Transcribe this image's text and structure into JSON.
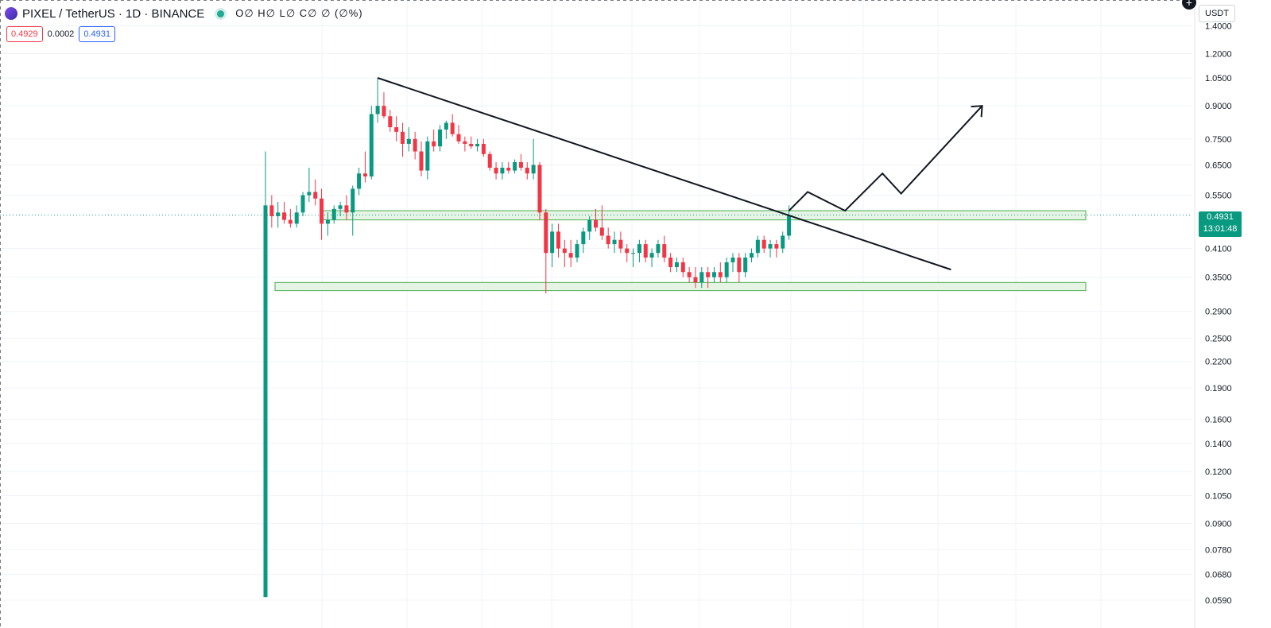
{
  "header": {
    "symbol_title": "PIXEL / TetherUS · 1D · BINANCE",
    "ohlc_text": "O∅ H∅ L∅ C∅ ∅ (∅%)",
    "sell_price": "0.4929",
    "spread": "0.0002",
    "buy_price": "0.4931"
  },
  "axis": {
    "currency": "USDT",
    "current_price": "0.4931",
    "countdown": "13:01:48"
  },
  "colors": {
    "up": "#089981",
    "down": "#f23645",
    "zone_fill": "#e6f4e6",
    "zone_stroke": "#4caf50",
    "line": "#131722"
  },
  "chart_data": {
    "type": "candlestick",
    "scale": "log",
    "y_ticks": [
      "1.4000",
      "1.2000",
      "1.0500",
      "0.9000",
      "0.7500",
      "0.6500",
      "0.5500",
      "0.4100",
      "0.3500",
      "0.2900",
      "0.2500",
      "0.2200",
      "0.1900",
      "0.1600",
      "0.1400",
      "0.1200",
      "0.1050",
      "0.0900",
      "0.0780",
      "0.0680",
      "0.0590"
    ],
    "ylim": [
      0.056,
      1.5
    ],
    "current_price": 0.4931,
    "candles": [
      [
        0.06,
        0.7,
        0.06,
        0.52
      ],
      [
        0.52,
        0.55,
        0.46,
        0.49
      ],
      [
        0.49,
        0.53,
        0.46,
        0.5
      ],
      [
        0.5,
        0.53,
        0.47,
        0.48
      ],
      [
        0.48,
        0.51,
        0.46,
        0.47
      ],
      [
        0.47,
        0.52,
        0.46,
        0.5
      ],
      [
        0.5,
        0.56,
        0.49,
        0.55
      ],
      [
        0.55,
        0.64,
        0.53,
        0.56
      ],
      [
        0.56,
        0.6,
        0.52,
        0.54
      ],
      [
        0.54,
        0.57,
        0.43,
        0.47
      ],
      [
        0.47,
        0.5,
        0.44,
        0.48
      ],
      [
        0.48,
        0.52,
        0.47,
        0.51
      ],
      [
        0.51,
        0.53,
        0.49,
        0.52
      ],
      [
        0.52,
        0.55,
        0.48,
        0.5
      ],
      [
        0.5,
        0.58,
        0.44,
        0.57
      ],
      [
        0.57,
        0.64,
        0.55,
        0.62
      ],
      [
        0.62,
        0.7,
        0.59,
        0.61
      ],
      [
        0.61,
        0.9,
        0.6,
        0.86
      ],
      [
        0.86,
        1.05,
        0.82,
        0.9
      ],
      [
        0.9,
        0.97,
        0.84,
        0.85
      ],
      [
        0.85,
        0.88,
        0.78,
        0.8
      ],
      [
        0.8,
        0.85,
        0.74,
        0.78
      ],
      [
        0.78,
        0.82,
        0.68,
        0.73
      ],
      [
        0.73,
        0.8,
        0.7,
        0.75
      ],
      [
        0.75,
        0.78,
        0.67,
        0.7
      ],
      [
        0.7,
        0.74,
        0.61,
        0.63
      ],
      [
        0.63,
        0.76,
        0.6,
        0.74
      ],
      [
        0.74,
        0.79,
        0.7,
        0.72
      ],
      [
        0.72,
        0.81,
        0.7,
        0.79
      ],
      [
        0.79,
        0.83,
        0.75,
        0.82
      ],
      [
        0.82,
        0.86,
        0.76,
        0.77
      ],
      [
        0.77,
        0.81,
        0.73,
        0.74
      ],
      [
        0.74,
        0.76,
        0.7,
        0.73
      ],
      [
        0.73,
        0.76,
        0.71,
        0.72
      ],
      [
        0.72,
        0.75,
        0.7,
        0.73
      ],
      [
        0.73,
        0.75,
        0.68,
        0.69
      ],
      [
        0.69,
        0.7,
        0.63,
        0.64
      ],
      [
        0.64,
        0.66,
        0.6,
        0.62
      ],
      [
        0.62,
        0.66,
        0.6,
        0.64
      ],
      [
        0.64,
        0.66,
        0.62,
        0.63
      ],
      [
        0.63,
        0.67,
        0.62,
        0.66
      ],
      [
        0.66,
        0.69,
        0.63,
        0.64
      ],
      [
        0.64,
        0.66,
        0.6,
        0.62
      ],
      [
        0.62,
        0.75,
        0.6,
        0.65
      ],
      [
        0.65,
        0.66,
        0.48,
        0.5
      ],
      [
        0.5,
        0.51,
        0.32,
        0.4
      ],
      [
        0.4,
        0.47,
        0.37,
        0.45
      ],
      [
        0.45,
        0.47,
        0.39,
        0.41
      ],
      [
        0.41,
        0.43,
        0.37,
        0.4
      ],
      [
        0.4,
        0.43,
        0.37,
        0.39
      ],
      [
        0.39,
        0.43,
        0.38,
        0.42
      ],
      [
        0.42,
        0.46,
        0.4,
        0.45
      ],
      [
        0.45,
        0.49,
        0.43,
        0.48
      ],
      [
        0.48,
        0.51,
        0.45,
        0.46
      ],
      [
        0.46,
        0.52,
        0.43,
        0.44
      ],
      [
        0.44,
        0.46,
        0.41,
        0.42
      ],
      [
        0.42,
        0.45,
        0.4,
        0.43
      ],
      [
        0.43,
        0.45,
        0.4,
        0.41
      ],
      [
        0.41,
        0.42,
        0.38,
        0.4
      ],
      [
        0.4,
        0.41,
        0.37,
        0.4
      ],
      [
        0.4,
        0.43,
        0.38,
        0.42
      ],
      [
        0.42,
        0.43,
        0.38,
        0.39
      ],
      [
        0.39,
        0.41,
        0.37,
        0.4
      ],
      [
        0.4,
        0.43,
        0.39,
        0.42
      ],
      [
        0.42,
        0.44,
        0.38,
        0.39
      ],
      [
        0.39,
        0.4,
        0.36,
        0.37
      ],
      [
        0.37,
        0.39,
        0.36,
        0.38
      ],
      [
        0.38,
        0.39,
        0.35,
        0.36
      ],
      [
        0.36,
        0.37,
        0.34,
        0.35
      ],
      [
        0.35,
        0.37,
        0.33,
        0.34
      ],
      [
        0.34,
        0.37,
        0.33,
        0.36
      ],
      [
        0.36,
        0.37,
        0.33,
        0.35
      ],
      [
        0.35,
        0.37,
        0.34,
        0.36
      ],
      [
        0.36,
        0.38,
        0.34,
        0.35
      ],
      [
        0.35,
        0.39,
        0.34,
        0.38
      ],
      [
        0.38,
        0.4,
        0.36,
        0.39
      ],
      [
        0.39,
        0.4,
        0.34,
        0.36
      ],
      [
        0.36,
        0.4,
        0.35,
        0.39
      ],
      [
        0.39,
        0.41,
        0.38,
        0.4
      ],
      [
        0.4,
        0.44,
        0.39,
        0.43
      ],
      [
        0.43,
        0.44,
        0.4,
        0.41
      ],
      [
        0.41,
        0.43,
        0.39,
        0.42
      ],
      [
        0.42,
        0.43,
        0.39,
        0.41
      ],
      [
        0.41,
        0.45,
        0.4,
        0.44
      ],
      [
        0.44,
        0.52,
        0.43,
        0.4931
      ]
    ],
    "annotations": {
      "resistance_zone": [
        0.48,
        0.505
      ],
      "support_zone": [
        0.325,
        0.34
      ],
      "trendline": [
        [
          18,
          1.05
        ],
        [
          110,
          0.365
        ]
      ],
      "projection": [
        [
          84,
          0.505
        ],
        [
          87,
          0.56
        ],
        [
          93,
          0.505
        ],
        [
          99,
          0.62
        ],
        [
          102,
          0.555
        ],
        [
          115,
          0.9
        ]
      ]
    }
  }
}
